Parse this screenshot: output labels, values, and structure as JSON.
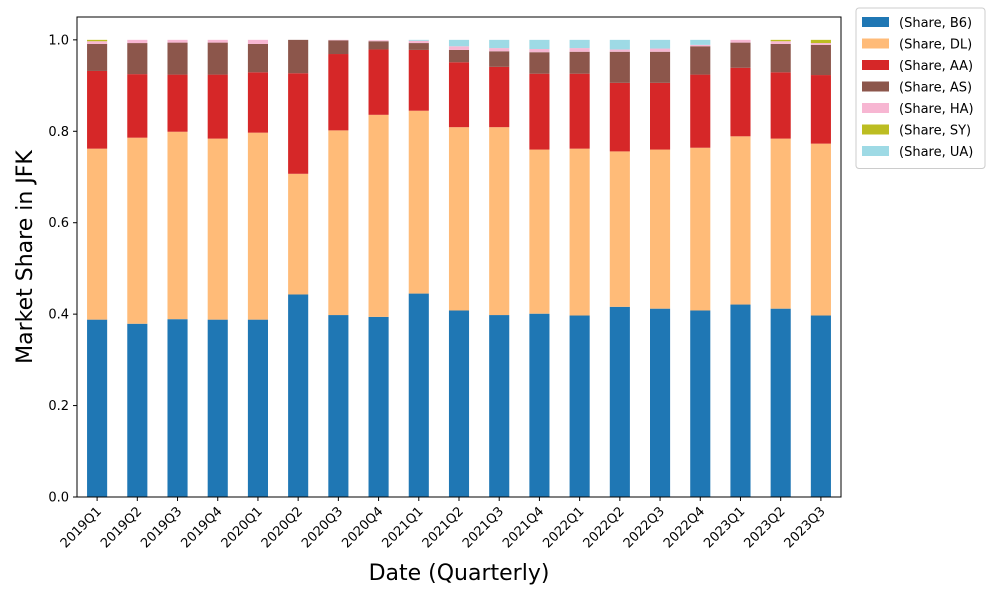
{
  "chart_data": {
    "type": "bar",
    "stacked": true,
    "title": "",
    "xlabel": "Date (Quarterly)",
    "ylabel": "Market Share in JFK",
    "ylim": [
      0,
      1.05
    ],
    "yticks": [
      0.0,
      0.2,
      0.4,
      0.6,
      0.8,
      1.0
    ],
    "grid": false,
    "legend_position": "outside-top-right",
    "categories": [
      "2019Q1",
      "2019Q2",
      "2019Q3",
      "2019Q4",
      "2020Q1",
      "2020Q2",
      "2020Q3",
      "2020Q4",
      "2021Q1",
      "2021Q2",
      "2021Q3",
      "2021Q4",
      "2022Q1",
      "2022Q2",
      "2022Q3",
      "2022Q4",
      "2023Q1",
      "2023Q2",
      "2023Q3"
    ],
    "series": [
      {
        "name": "(Share, B6)",
        "color": "#1f77b4",
        "values": [
          0.388,
          0.379,
          0.389,
          0.388,
          0.388,
          0.443,
          0.398,
          0.394,
          0.445,
          0.408,
          0.398,
          0.401,
          0.397,
          0.416,
          0.412,
          0.408,
          0.421,
          0.412,
          0.397
        ]
      },
      {
        "name": "(Share, DL)",
        "color": "#ffbb78",
        "values": [
          0.374,
          0.407,
          0.41,
          0.396,
          0.409,
          0.264,
          0.404,
          0.442,
          0.4,
          0.401,
          0.411,
          0.359,
          0.365,
          0.34,
          0.348,
          0.356,
          0.368,
          0.372,
          0.376
        ]
      },
      {
        "name": "(Share, AA)",
        "color": "#d62728",
        "values": [
          0.17,
          0.139,
          0.125,
          0.14,
          0.132,
          0.22,
          0.167,
          0.143,
          0.133,
          0.142,
          0.132,
          0.166,
          0.164,
          0.15,
          0.146,
          0.16,
          0.15,
          0.145,
          0.15
        ]
      },
      {
        "name": "(Share, AS)",
        "color": "#8c564b",
        "values": [
          0.059,
          0.068,
          0.07,
          0.07,
          0.062,
          0.073,
          0.03,
          0.018,
          0.015,
          0.027,
          0.034,
          0.047,
          0.048,
          0.068,
          0.068,
          0.062,
          0.055,
          0.062,
          0.066
        ]
      },
      {
        "name": "(Share, HA)",
        "color": "#f7b6d2",
        "values": [
          0.006,
          0.007,
          0.006,
          0.006,
          0.009,
          0.0,
          0.001,
          0.002,
          0.005,
          0.008,
          0.007,
          0.007,
          0.008,
          0.005,
          0.007,
          0.003,
          0.006,
          0.006,
          0.004
        ]
      },
      {
        "name": "(Share, SY)",
        "color": "#bcbd22",
        "values": [
          0.003,
          0.0,
          0.0,
          0.0,
          0.0,
          0.0,
          0.0,
          0.0,
          0.0,
          0.0,
          0.0,
          0.0,
          0.0,
          0.0,
          0.0,
          0.0,
          0.0,
          0.003,
          0.007
        ]
      },
      {
        "name": "(Share, UA)",
        "color": "#9edae5",
        "values": [
          0.0,
          0.0,
          0.0,
          0.0,
          0.0,
          0.0,
          0.0,
          0.0,
          0.002,
          0.014,
          0.018,
          0.02,
          0.018,
          0.021,
          0.019,
          0.011,
          0.0,
          0.0,
          0.0
        ]
      }
    ]
  }
}
